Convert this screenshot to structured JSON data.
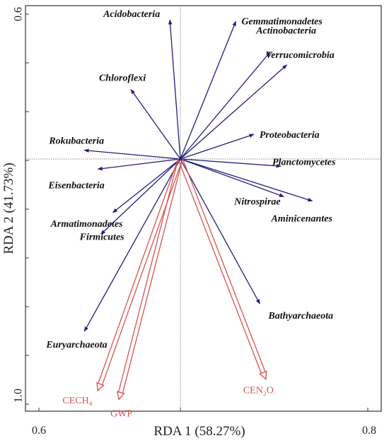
{
  "chart_data": {
    "type": "biplot",
    "xlabel": "RDA 1 (58.27%)",
    "ylabel": "RDA 2 (41.73%)",
    "x_ticks": [
      "0.6",
      "0.8"
    ],
    "y_ticks": [
      "0.6",
      "1.0"
    ],
    "species_color": "#1f1f7a",
    "env_color": "#d9534f",
    "species": [
      {
        "name": "Acidobacteria",
        "x": -0.07,
        "y": 0.96
      },
      {
        "name": "Gemmatimonadetes",
        "x": 0.37,
        "y": 0.95
      },
      {
        "name": "Chloroflexi",
        "x": -0.33,
        "y": 0.48
      },
      {
        "name": "Actinobacteria",
        "x": 0.6,
        "y": 0.74
      },
      {
        "name": "Verrucomicrobia",
        "x": 0.71,
        "y": 0.65
      },
      {
        "name": "Rokubacteria",
        "x": -0.64,
        "y": 0.06
      },
      {
        "name": "Proteobacteria",
        "x": 0.49,
        "y": 0.17
      },
      {
        "name": "Planctomycetes",
        "x": 0.67,
        "y": -0.05
      },
      {
        "name": "Eisenbacteria",
        "x": -0.55,
        "y": -0.07
      },
      {
        "name": "Nitrospirae",
        "x": 0.69,
        "y": -0.26
      },
      {
        "name": "Aminicenantes",
        "x": 0.88,
        "y": -0.29
      },
      {
        "name": "Armatimonadetes",
        "x": -0.45,
        "y": -0.37
      },
      {
        "name": "Firmicutes",
        "x": -0.53,
        "y": -0.52
      },
      {
        "name": "Bathyarchaeota",
        "x": 0.53,
        "y": -1.0
      },
      {
        "name": "Euryarchaeota",
        "x": -0.64,
        "y": -1.19
      }
    ],
    "env": [
      {
        "name": "CECH₄",
        "x": -0.55,
        "y": -1.6
      },
      {
        "name": "GWP",
        "x": -0.41,
        "y": -1.66
      },
      {
        "name": "CEN₂O",
        "x": 0.57,
        "y": -1.52
      }
    ]
  }
}
